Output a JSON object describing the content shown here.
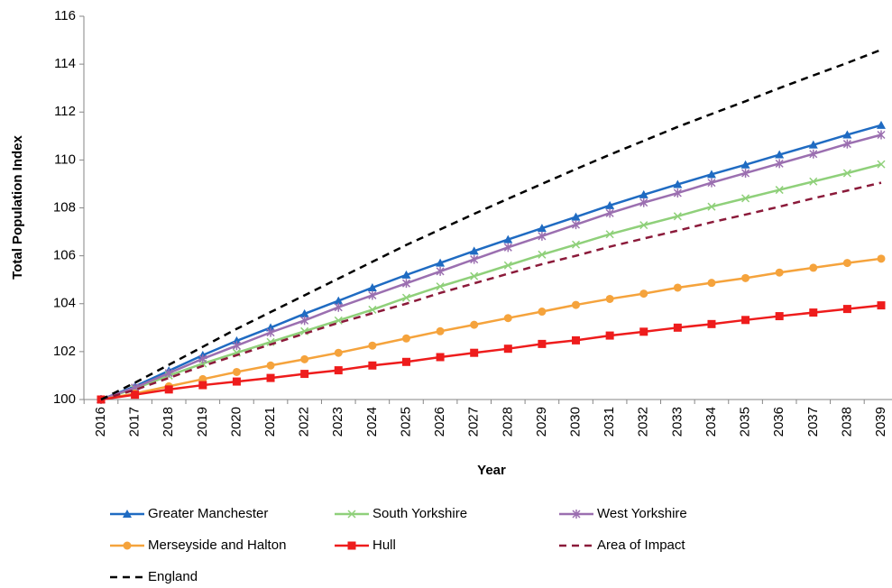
{
  "chart_data": {
    "type": "line",
    "x_label": "Year",
    "y_label": "Total Population Index",
    "categories": [
      "2016",
      "2017",
      "2018",
      "2019",
      "2020",
      "2021",
      "2022",
      "2023",
      "2024",
      "2025",
      "2026",
      "2027",
      "2028",
      "2029",
      "2030",
      "2031",
      "2032",
      "2033",
      "2034",
      "2035",
      "2036",
      "2037",
      "2038",
      "2039"
    ],
    "ylim": [
      100,
      116
    ],
    "yticks": [
      100,
      102,
      104,
      106,
      108,
      110,
      112,
      114,
      116
    ],
    "grid": false,
    "legend": "bottom",
    "series": [
      {
        "name": "Greater Manchester",
        "color": "#1f6bc2",
        "marker": "triangle",
        "dash": false,
        "values": [
          100,
          100.55,
          101.2,
          101.85,
          102.45,
          103.0,
          103.58,
          104.12,
          104.67,
          105.2,
          105.7,
          106.2,
          106.68,
          107.15,
          107.62,
          108.1,
          108.55,
          108.98,
          109.4,
          109.8,
          110.22,
          110.63,
          111.05,
          111.45
        ]
      },
      {
        "name": "South Yorkshire",
        "color": "#8fd07a",
        "marker": "x",
        "dash": false,
        "values": [
          100,
          100.45,
          101.0,
          101.5,
          101.95,
          102.4,
          102.85,
          103.3,
          103.75,
          104.25,
          104.72,
          105.15,
          105.6,
          106.05,
          106.47,
          106.9,
          107.28,
          107.65,
          108.05,
          108.4,
          108.75,
          109.1,
          109.45,
          109.82
        ]
      },
      {
        "name": "West Yorkshire",
        "color": "#9b6fb0",
        "marker": "star",
        "dash": false,
        "values": [
          100,
          100.5,
          101.1,
          101.7,
          102.25,
          102.8,
          103.3,
          103.85,
          104.35,
          104.85,
          105.35,
          105.85,
          106.35,
          106.82,
          107.3,
          107.78,
          108.22,
          108.62,
          109.05,
          109.45,
          109.85,
          110.25,
          110.67,
          111.05
        ]
      },
      {
        "name": "Merseyside and Halton",
        "color": "#f5a33c",
        "marker": "circle",
        "dash": false,
        "values": [
          100,
          100.25,
          100.55,
          100.85,
          101.15,
          101.42,
          101.68,
          101.95,
          102.25,
          102.55,
          102.85,
          103.12,
          103.4,
          103.67,
          103.95,
          104.2,
          104.42,
          104.67,
          104.87,
          105.07,
          105.3,
          105.5,
          105.7,
          105.88
        ]
      },
      {
        "name": "Hull",
        "color": "#ee1c1c",
        "marker": "square",
        "dash": false,
        "values": [
          100,
          100.2,
          100.42,
          100.6,
          100.75,
          100.9,
          101.07,
          101.22,
          101.42,
          101.57,
          101.77,
          101.95,
          102.12,
          102.32,
          102.47,
          102.67,
          102.83,
          103.0,
          103.15,
          103.32,
          103.48,
          103.63,
          103.78,
          103.93
        ]
      },
      {
        "name": "Area of Impact",
        "color": "#8b1a3a",
        "marker": "none",
        "dash": true,
        "values": [
          100,
          100.4,
          100.9,
          101.4,
          101.85,
          102.3,
          102.75,
          103.2,
          103.6,
          104.0,
          104.45,
          104.85,
          105.25,
          105.65,
          106.0,
          106.38,
          106.72,
          107.05,
          107.4,
          107.72,
          108.05,
          108.4,
          108.72,
          109.05
        ]
      },
      {
        "name": "England",
        "color": "#000000",
        "marker": "none",
        "dash": true,
        "values": [
          100,
          100.7,
          101.45,
          102.2,
          102.95,
          103.65,
          104.35,
          105.05,
          105.75,
          106.45,
          107.1,
          107.75,
          108.38,
          109.0,
          109.62,
          110.22,
          110.8,
          111.38,
          111.92,
          112.45,
          113.0,
          113.53,
          114.05,
          114.6
        ]
      }
    ]
  }
}
